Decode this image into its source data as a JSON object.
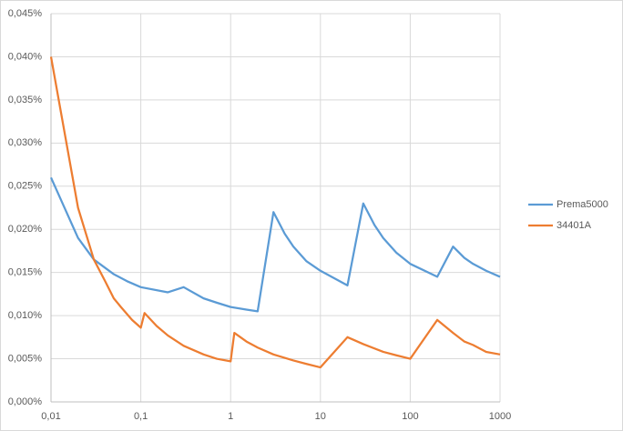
{
  "chart_data": {
    "type": "line",
    "xscale": "log",
    "grid": true,
    "legend": "right",
    "xlim": [
      0.01,
      1000
    ],
    "xticks": [
      {
        "value": 0.01,
        "label": "0,01"
      },
      {
        "value": 0.1,
        "label": "0,1"
      },
      1,
      10,
      100,
      1000
    ],
    "ylim": [
      0,
      0.045
    ],
    "yticks": [
      {
        "value": 0,
        "label": "0,000%"
      },
      {
        "value": 0.005,
        "label": "0,005%"
      },
      {
        "value": 0.01,
        "label": "0,010%"
      },
      {
        "value": 0.015,
        "label": "0,015%"
      },
      {
        "value": 0.02,
        "label": "0,020%"
      },
      {
        "value": 0.025,
        "label": "0,025%"
      },
      {
        "value": 0.03,
        "label": "0,030%"
      },
      {
        "value": 0.035,
        "label": "0,035%"
      },
      {
        "value": 0.04,
        "label": "0,040%"
      },
      {
        "value": 0.045,
        "label": "0,045%"
      }
    ],
    "series": [
      {
        "name": "Prema5000",
        "color": "#5b9bd5",
        "x": [
          0.01,
          0.02,
          0.03,
          0.05,
          0.07,
          0.1,
          0.2,
          0.3,
          0.5,
          0.7,
          1,
          1.5,
          2,
          3,
          4,
          5,
          7,
          10,
          20,
          30,
          40,
          50,
          70,
          100,
          200,
          300,
          400,
          500,
          700,
          1000
        ],
        "values": [
          0.026,
          0.019,
          0.0165,
          0.0148,
          0.014,
          0.0133,
          0.0127,
          0.0133,
          0.012,
          0.0115,
          0.011,
          0.0107,
          0.0105,
          0.022,
          0.0195,
          0.018,
          0.0163,
          0.0152,
          0.0135,
          0.023,
          0.0205,
          0.019,
          0.0173,
          0.016,
          0.0145,
          0.018,
          0.0167,
          0.016,
          0.0152,
          0.0145
        ]
      },
      {
        "name": "34401A",
        "color": "#ed7d31",
        "x": [
          0.01,
          0.02,
          0.03,
          0.04,
          0.05,
          0.06,
          0.08,
          0.1,
          0.11,
          0.15,
          0.2,
          0.3,
          0.5,
          0.7,
          1,
          1.1,
          1.5,
          2,
          3,
          5,
          7,
          10,
          20,
          30,
          50,
          70,
          100,
          200,
          300,
          400,
          500,
          700,
          1000
        ],
        "values": [
          0.04,
          0.0225,
          0.0165,
          0.014,
          0.012,
          0.011,
          0.0095,
          0.0086,
          0.0103,
          0.0088,
          0.0077,
          0.0065,
          0.0055,
          0.005,
          0.0047,
          0.008,
          0.007,
          0.0063,
          0.0055,
          0.0048,
          0.0044,
          0.004,
          0.0075,
          0.0067,
          0.0058,
          0.0054,
          0.005,
          0.0095,
          0.008,
          0.007,
          0.0066,
          0.0058,
          0.0055
        ]
      }
    ]
  }
}
